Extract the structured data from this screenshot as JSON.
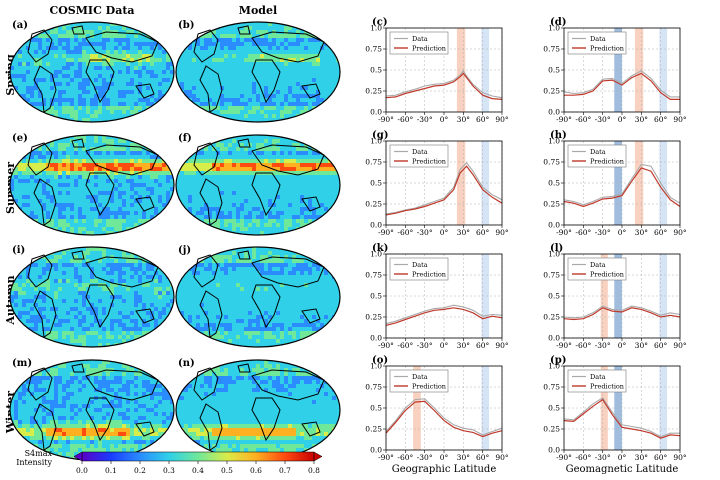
{
  "headers": {
    "col_data": "COSMIC Data",
    "col_model": "Model"
  },
  "seasons": [
    "Spring",
    "Summer",
    "Autumn",
    "Winter"
  ],
  "map_panels": [
    {
      "label": "(a)",
      "season": 0,
      "col": 0
    },
    {
      "label": "(b)",
      "season": 0,
      "col": 1
    },
    {
      "label": "(e)",
      "season": 1,
      "col": 0
    },
    {
      "label": "(f)",
      "season": 1,
      "col": 1
    },
    {
      "label": "(i)",
      "season": 2,
      "col": 0
    },
    {
      "label": "(j)",
      "season": 2,
      "col": 1
    },
    {
      "label": "(m)",
      "season": 3,
      "col": 0
    },
    {
      "label": "(n)",
      "season": 3,
      "col": 1
    }
  ],
  "colorbar": {
    "title_line1": "S4max",
    "title_line2": "Intensity",
    "ticks": [
      "0.0",
      "0.1",
      "0.2",
      "0.3",
      "0.4",
      "0.5",
      "0.6",
      "0.7",
      "0.8"
    ],
    "min": 0.0,
    "max": 0.8,
    "colors": [
      "#5a00c8",
      "#1a3cff",
      "#2a8cff",
      "#2fd0e8",
      "#6fe89a",
      "#d8ec4a",
      "#ffb020",
      "#ff4a10",
      "#c80000"
    ]
  },
  "colors": {
    "data_line": "#a9a9a9",
    "prediction_line": "#c0392b",
    "orange_band": "#f7c9b5",
    "light_blue_band": "#cfe1f5",
    "dark_blue_band": "#8fb1d8"
  },
  "legend": {
    "data": "Data",
    "prediction": "Prediction"
  },
  "x_labels": {
    "col_geographic": "Geographic Latitude",
    "col_geomagnetic": "Geomagnetic Latitude"
  },
  "chart_data": [
    {
      "panel": "(c)",
      "type": "line",
      "season": "Spring",
      "xaxis": "geographic",
      "xlim": [
        -90,
        90
      ],
      "ylim": [
        0,
        1.0
      ],
      "x": [
        -90,
        -75,
        -60,
        -45,
        -30,
        -15,
        0,
        15,
        25,
        30,
        35,
        45,
        60,
        75,
        90
      ],
      "series": [
        {
          "name": "Data",
          "values": [
            0.19,
            0.2,
            0.24,
            0.27,
            0.31,
            0.33,
            0.34,
            0.38,
            0.44,
            0.49,
            0.43,
            0.33,
            0.23,
            0.19,
            0.17
          ]
        },
        {
          "name": "Prediction",
          "values": [
            0.17,
            0.18,
            0.22,
            0.25,
            0.28,
            0.31,
            0.32,
            0.36,
            0.42,
            0.46,
            0.41,
            0.31,
            0.2,
            0.16,
            0.15
          ]
        }
      ],
      "bands": [
        {
          "from": 20,
          "to": 33,
          "color": "orange"
        },
        {
          "from": 58,
          "to": 70,
          "color": "light_blue"
        }
      ]
    },
    {
      "panel": "(d)",
      "type": "line",
      "season": "Spring",
      "xaxis": "geomagnetic",
      "xlim": [
        -90,
        90
      ],
      "ylim": [
        0,
        1.0
      ],
      "x": [
        -90,
        -75,
        -60,
        -45,
        -30,
        -15,
        0,
        15,
        30,
        45,
        60,
        75,
        90
      ],
      "series": [
        {
          "name": "Data",
          "values": [
            0.24,
            0.22,
            0.23,
            0.27,
            0.39,
            0.4,
            0.34,
            0.43,
            0.49,
            0.4,
            0.26,
            0.18,
            0.18
          ]
        },
        {
          "name": "Prediction",
          "values": [
            0.2,
            0.2,
            0.21,
            0.25,
            0.37,
            0.38,
            0.32,
            0.41,
            0.46,
            0.37,
            0.23,
            0.15,
            0.15
          ]
        }
      ],
      "bands": [
        {
          "from": -12,
          "to": 0,
          "color": "dark_blue"
        },
        {
          "from": 20,
          "to": 33,
          "color": "orange"
        },
        {
          "from": 58,
          "to": 70,
          "color": "light_blue"
        }
      ]
    },
    {
      "panel": "(g)",
      "type": "line",
      "season": "Summer",
      "xaxis": "geographic",
      "xlim": [
        -90,
        90
      ],
      "ylim": [
        0,
        1.0
      ],
      "x": [
        -90,
        -75,
        -60,
        -45,
        -30,
        -15,
        0,
        15,
        25,
        35,
        45,
        60,
        75,
        90
      ],
      "series": [
        {
          "name": "Data",
          "values": [
            0.13,
            0.15,
            0.18,
            0.2,
            0.24,
            0.28,
            0.32,
            0.45,
            0.66,
            0.74,
            0.64,
            0.45,
            0.36,
            0.3
          ]
        },
        {
          "name": "Prediction",
          "values": [
            0.12,
            0.14,
            0.17,
            0.19,
            0.22,
            0.26,
            0.3,
            0.42,
            0.62,
            0.7,
            0.6,
            0.42,
            0.33,
            0.26
          ]
        }
      ],
      "bands": [
        {
          "from": 20,
          "to": 33,
          "color": "orange"
        },
        {
          "from": 58,
          "to": 70,
          "color": "light_blue"
        }
      ]
    },
    {
      "panel": "(h)",
      "type": "line",
      "season": "Summer",
      "xaxis": "geomagnetic",
      "xlim": [
        -90,
        90
      ],
      "ylim": [
        0,
        1.0
      ],
      "x": [
        -90,
        -75,
        -60,
        -45,
        -30,
        -15,
        0,
        15,
        30,
        45,
        60,
        75,
        90
      ],
      "series": [
        {
          "name": "Data",
          "values": [
            0.3,
            0.28,
            0.24,
            0.28,
            0.33,
            0.34,
            0.37,
            0.55,
            0.72,
            0.7,
            0.5,
            0.33,
            0.26
          ]
        },
        {
          "name": "Prediction",
          "values": [
            0.28,
            0.26,
            0.22,
            0.26,
            0.31,
            0.32,
            0.35,
            0.52,
            0.68,
            0.64,
            0.45,
            0.3,
            0.22
          ]
        }
      ],
      "bands": [
        {
          "from": -12,
          "to": 0,
          "color": "dark_blue"
        },
        {
          "from": 20,
          "to": 33,
          "color": "orange"
        },
        {
          "from": 58,
          "to": 70,
          "color": "light_blue"
        }
      ]
    },
    {
      "panel": "(k)",
      "type": "line",
      "season": "Autumn",
      "xaxis": "geographic",
      "xlim": [
        -90,
        90
      ],
      "ylim": [
        0,
        1.0
      ],
      "x": [
        -90,
        -75,
        -60,
        -45,
        -30,
        -15,
        0,
        15,
        30,
        45,
        60,
        75,
        90
      ],
      "series": [
        {
          "name": "Data",
          "values": [
            0.17,
            0.2,
            0.24,
            0.28,
            0.32,
            0.35,
            0.36,
            0.39,
            0.37,
            0.33,
            0.26,
            0.28,
            0.27
          ]
        },
        {
          "name": "Prediction",
          "values": [
            0.15,
            0.18,
            0.22,
            0.26,
            0.3,
            0.33,
            0.34,
            0.36,
            0.34,
            0.3,
            0.23,
            0.26,
            0.24
          ]
        }
      ],
      "bands": [
        {
          "from": 58,
          "to": 70,
          "color": "light_blue"
        }
      ]
    },
    {
      "panel": "(l)",
      "type": "line",
      "season": "Autumn",
      "xaxis": "geomagnetic",
      "xlim": [
        -90,
        90
      ],
      "ylim": [
        0,
        1.0
      ],
      "x": [
        -90,
        -75,
        -60,
        -45,
        -30,
        -15,
        0,
        15,
        30,
        45,
        60,
        75,
        90
      ],
      "series": [
        {
          "name": "Data",
          "values": [
            0.25,
            0.24,
            0.25,
            0.3,
            0.38,
            0.34,
            0.33,
            0.38,
            0.36,
            0.32,
            0.27,
            0.3,
            0.28
          ]
        },
        {
          "name": "Prediction",
          "values": [
            0.23,
            0.22,
            0.23,
            0.28,
            0.36,
            0.32,
            0.31,
            0.36,
            0.34,
            0.3,
            0.25,
            0.27,
            0.25
          ]
        }
      ],
      "bands": [
        {
          "from": -33,
          "to": -22,
          "color": "orange"
        },
        {
          "from": -12,
          "to": 0,
          "color": "dark_blue"
        },
        {
          "from": 58,
          "to": 70,
          "color": "light_blue"
        }
      ]
    },
    {
      "panel": "(o)",
      "type": "line",
      "season": "Winter",
      "xaxis": "geographic",
      "xlim": [
        -90,
        90
      ],
      "ylim": [
        0,
        1.0
      ],
      "x": [
        -90,
        -75,
        -60,
        -45,
        -30,
        -15,
        0,
        15,
        30,
        45,
        60,
        75,
        90
      ],
      "series": [
        {
          "name": "Data",
          "values": [
            0.22,
            0.35,
            0.5,
            0.6,
            0.61,
            0.5,
            0.38,
            0.3,
            0.26,
            0.24,
            0.18,
            0.22,
            0.26
          ]
        },
        {
          "name": "Prediction",
          "values": [
            0.2,
            0.33,
            0.47,
            0.57,
            0.58,
            0.47,
            0.35,
            0.27,
            0.23,
            0.21,
            0.16,
            0.2,
            0.23
          ]
        }
      ],
      "bands": [
        {
          "from": -48,
          "to": -36,
          "color": "orange"
        },
        {
          "from": 58,
          "to": 70,
          "color": "light_blue"
        }
      ]
    },
    {
      "panel": "(p)",
      "type": "line",
      "season": "Winter",
      "xaxis": "geomagnetic",
      "xlim": [
        -90,
        90
      ],
      "ylim": [
        0,
        1.0
      ],
      "x": [
        -90,
        -75,
        -60,
        -45,
        -30,
        -15,
        0,
        15,
        30,
        45,
        60,
        75,
        90
      ],
      "series": [
        {
          "name": "Data",
          "values": [
            0.37,
            0.36,
            0.45,
            0.55,
            0.62,
            0.45,
            0.3,
            0.28,
            0.26,
            0.22,
            0.16,
            0.2,
            0.2
          ]
        },
        {
          "name": "Prediction",
          "values": [
            0.35,
            0.34,
            0.43,
            0.52,
            0.6,
            0.42,
            0.27,
            0.25,
            0.23,
            0.2,
            0.14,
            0.18,
            0.17
          ]
        }
      ],
      "bands": [
        {
          "from": -33,
          "to": -22,
          "color": "orange"
        },
        {
          "from": -12,
          "to": 0,
          "color": "dark_blue"
        },
        {
          "from": 58,
          "to": 70,
          "color": "light_blue"
        }
      ]
    }
  ]
}
